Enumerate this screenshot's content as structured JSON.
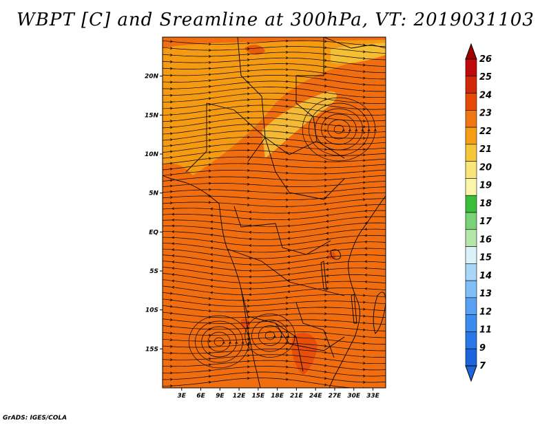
{
  "title": "WBPT [C] and Sreamline at 300hPa, VT: 2019031103",
  "credit": "GrADS: IGES/COLA",
  "map": {
    "lat_labels": [
      {
        "label": "20N",
        "lat": 20
      },
      {
        "label": "15N",
        "lat": 15
      },
      {
        "label": "10N",
        "lat": 10
      },
      {
        "label": "5N",
        "lat": 5
      },
      {
        "label": "EQ",
        "lat": 0
      },
      {
        "label": "5S",
        "lat": -5
      },
      {
        "label": "10S",
        "lat": -10
      },
      {
        "label": "15S",
        "lat": -15
      }
    ],
    "lon_labels": [
      {
        "label": "3E",
        "lon": 3
      },
      {
        "label": "6E",
        "lon": 6
      },
      {
        "label": "9E",
        "lon": 9
      },
      {
        "label": "12E",
        "lon": 12
      },
      {
        "label": "15E",
        "lon": 15
      },
      {
        "label": "18E",
        "lon": 18
      },
      {
        "label": "21E",
        "lon": 21
      },
      {
        "label": "24E",
        "lon": 24
      },
      {
        "label": "27E",
        "lon": 27
      },
      {
        "label": "30E",
        "lon": 30
      },
      {
        "label": "33E",
        "lon": 33
      }
    ],
    "lon_range": [
      0,
      35
    ],
    "lat_range": [
      -20,
      25
    ],
    "background_color": "#f06e10",
    "streamline_color": "#000000"
  },
  "colorbar": {
    "labels": [
      "7",
      "9",
      "11",
      "12",
      "13",
      "14",
      "15",
      "16",
      "17",
      "18",
      "19",
      "20",
      "21",
      "22",
      "23",
      "24",
      "25",
      "26"
    ],
    "colors": [
      "#1e64dc",
      "#2878e6",
      "#3c8cf0",
      "#5aa0f5",
      "#82bef8",
      "#aad6fa",
      "#dcf2fa",
      "#b4e6aa",
      "#78d278",
      "#3cbe3c",
      "#faf5aa",
      "#fae678",
      "#f5c83c",
      "#f5a014",
      "#f07814",
      "#e64b0a",
      "#d2280a",
      "#be0a0a"
    ],
    "min_arrow_color": "#1e64dc",
    "max_arrow_color": "#a00000"
  }
}
